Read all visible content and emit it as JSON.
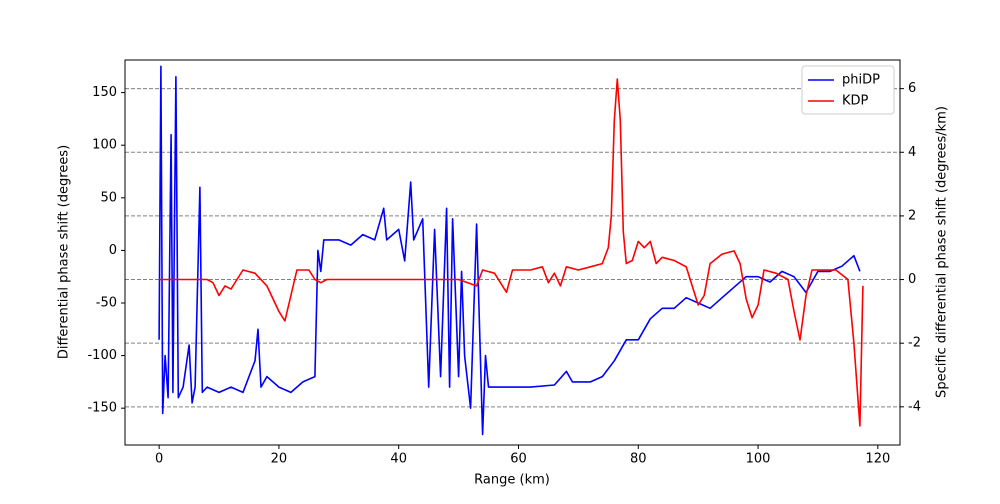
{
  "chart_data": {
    "type": "line",
    "x_label": "Range (km)",
    "y_label": "Differential phase shift (degrees)",
    "y2_label": "Specific differential phase shift (degrees/km)",
    "xlim": [
      -5.7,
      123.7
    ],
    "xticks": [
      0,
      20,
      40,
      60,
      80,
      100,
      120
    ],
    "ylim": [
      -185,
      181
    ],
    "yticks": [
      -150,
      -100,
      -50,
      0,
      50,
      100,
      150
    ],
    "y2lim": [
      -5.2,
      6.9
    ],
    "y2ticks": [
      -4,
      -2,
      0,
      2,
      4,
      6
    ],
    "grid": "y2",
    "legend": "upper right",
    "series": [
      {
        "name": "phiDP",
        "color": "#0000ff",
        "x": [
          0,
          0.3,
          0.6,
          1,
          1.5,
          2,
          2.3,
          2.8,
          3.2,
          4,
          5,
          5.5,
          6,
          6.8,
          7.2,
          8,
          10,
          12,
          14,
          16,
          16.5,
          17,
          18,
          20,
          22,
          24,
          26,
          26.5,
          27,
          27.5,
          30,
          32,
          34,
          36,
          37.5,
          38,
          40,
          41,
          42,
          42.5,
          44,
          45,
          46,
          47,
          48,
          48.5,
          49,
          50,
          50.5,
          51,
          52,
          53,
          54,
          54.5,
          55,
          58,
          62,
          66,
          68,
          69,
          72,
          74,
          76,
          78,
          80,
          82,
          84,
          86,
          88,
          90,
          92,
          94,
          96,
          98,
          100,
          102,
          104,
          106,
          108,
          110,
          112,
          114,
          116,
          117
        ],
        "values": [
          -85,
          175,
          -155,
          -100,
          -140,
          110,
          -135,
          165,
          -140,
          -130,
          -90,
          -145,
          -130,
          60,
          -135,
          -130,
          -135,
          -130,
          -135,
          -105,
          -75,
          -130,
          -120,
          -130,
          -135,
          -125,
          -120,
          0,
          -20,
          10,
          10,
          5,
          15,
          10,
          40,
          10,
          20,
          -10,
          65,
          10,
          30,
          -130,
          20,
          -120,
          40,
          -130,
          30,
          -120,
          -20,
          -100,
          -150,
          25,
          -175,
          -100,
          -130,
          -130,
          -130,
          -128,
          -115,
          -125,
          -125,
          -120,
          -105,
          -85,
          -85,
          -65,
          -55,
          -55,
          -45,
          -50,
          -55,
          -45,
          -35,
          -25,
          -25,
          -30,
          -20,
          -25,
          -40,
          -20,
          -20,
          -15,
          -5,
          -20
        ]
      },
      {
        "name": "KDP",
        "color": "#ff0000",
        "axis": "y2",
        "x": [
          0,
          8,
          9,
          10,
          11,
          12,
          13,
          14,
          16,
          18,
          20,
          21,
          22,
          23,
          25,
          26,
          27,
          28,
          50,
          53,
          54,
          56,
          58,
          59,
          62,
          64,
          65,
          66,
          67,
          68,
          70,
          72,
          74,
          75,
          75.5,
          76,
          76.5,
          77,
          77.5,
          78,
          79,
          80,
          81,
          82,
          83,
          84,
          86,
          88,
          89,
          90,
          91,
          92,
          94,
          96,
          97,
          98,
          99,
          100,
          101,
          103,
          105,
          106,
          107,
          108,
          109,
          113,
          115,
          116,
          117,
          117.5
        ],
        "values": [
          0,
          0,
          -0.1,
          -0.5,
          -0.2,
          -0.3,
          0,
          0.3,
          0.2,
          -0.2,
          -1,
          -1.3,
          -0.5,
          0.3,
          0.3,
          0,
          -0.1,
          0,
          0,
          -0.2,
          0.3,
          0.2,
          -0.4,
          0.3,
          0.3,
          0.4,
          -0.1,
          0.2,
          -0.2,
          0.4,
          0.3,
          0.4,
          0.5,
          1,
          2,
          5,
          6.3,
          5,
          1.5,
          0.5,
          0.6,
          1.2,
          1,
          1.2,
          0.5,
          0.7,
          0.6,
          0.4,
          -0.2,
          -0.8,
          -0.5,
          0.5,
          0.8,
          0.9,
          0.5,
          -0.6,
          -1.2,
          -0.8,
          0.3,
          0.2,
          0,
          -1,
          -1.9,
          -0.5,
          0.3,
          0.3,
          0,
          -2,
          -4.6,
          -0.2
        ]
      }
    ]
  }
}
